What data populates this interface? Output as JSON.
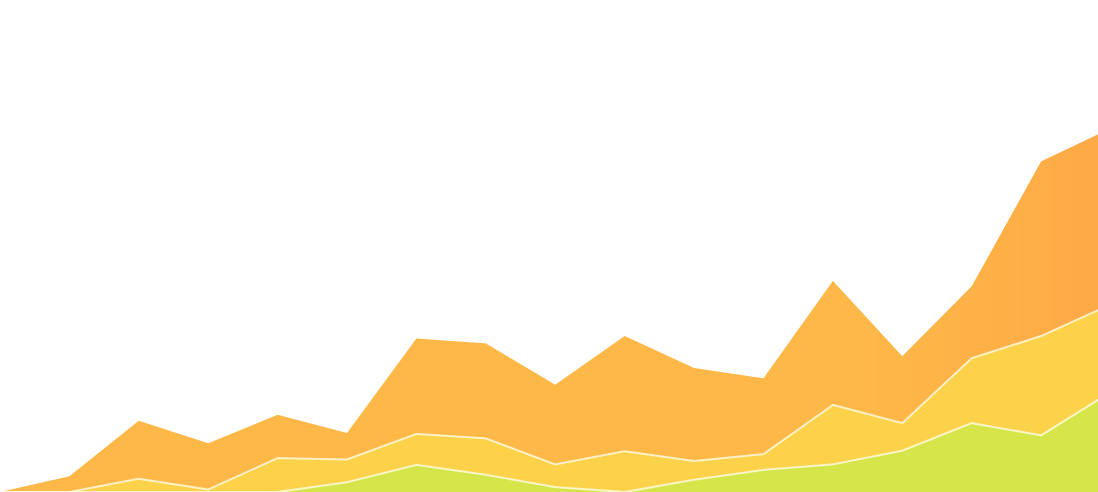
{
  "chart_data": {
    "type": "area",
    "stacked": true,
    "title": "",
    "xlabel": "",
    "ylabel": "",
    "grid": false,
    "legend": "none",
    "x": [
      0,
      1,
      2,
      3,
      4,
      5,
      6,
      7,
      8,
      9,
      10,
      11,
      12,
      13,
      14,
      15,
      16
    ],
    "xlim": [
      0,
      15.82
    ],
    "ylim": [
      0,
      100
    ],
    "series": [
      {
        "color": "#d6e64a",
        "values": [
          0,
          0,
          0,
          0,
          0,
          2,
          5.5,
          3.5,
          1,
          0,
          2.5,
          4.5,
          5.6,
          8.4,
          14,
          11.5,
          20.3
        ]
      },
      {
        "color": "#fdd24b",
        "values": [
          0,
          0,
          2.7,
          0.5,
          6.9,
          4.6,
          6.3,
          7.4,
          4.6,
          8.3,
          3.8,
          3.2,
          12.1,
          5.6,
          13.2,
          20.2,
          17.8
        ]
      },
      {
        "color": "#feb847",
        "values": [
          0,
          3.2,
          11.8,
          9.4,
          8.8,
          5.4,
          19.4,
          19.3,
          16.2,
          23.4,
          18.9,
          15.4,
          25.2,
          13.6,
          14.6,
          35.5,
          35.8
        ]
      }
    ]
  }
}
